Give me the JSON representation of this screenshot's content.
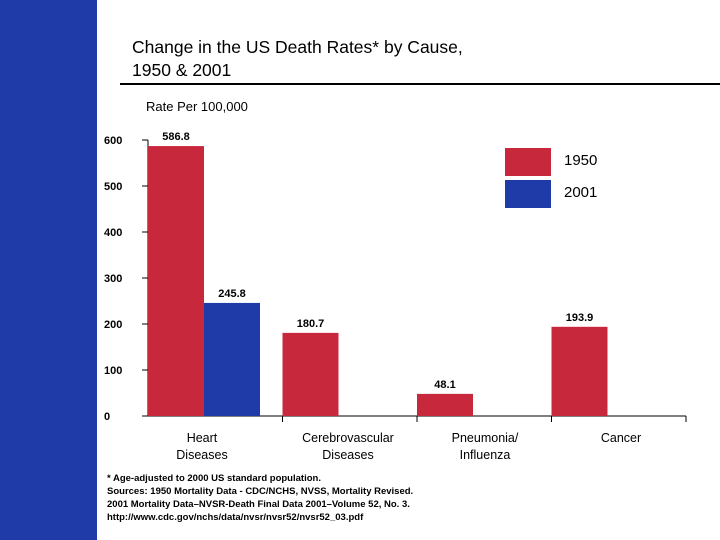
{
  "title": "Change in the US Death Rates* by Cause,\n1950 & 2001",
  "footnote": "* Age-adjusted to 2000 US standard population.\nSources: 1950 Mortality Data - CDC/NCHS, NVSS, Mortality Revised.\n2001 Mortality Data–NVSR-Death Final Data 2001–Volume 52, No. 3.\nhttp://www.cdc.gov/nchs/data/nvsr/nvsr52/nvsr52_03.pdf",
  "colors": {
    "sidebar": "#1f3ba8",
    "series_1950": "#c8283c",
    "series_2001": "#1f3ba8"
  },
  "chart_data": {
    "type": "bar",
    "title": "Change in the US Death Rates* by Cause, 1950 & 2001",
    "ylabel": "Rate Per 100,000",
    "ylim": [
      0,
      600
    ],
    "yticks": [
      0,
      100,
      200,
      300,
      400,
      500,
      600
    ],
    "categories": [
      "Heart\nDiseases",
      "Cerebrovascular\nDiseases",
      "Pneumonia/\nInfluenza",
      "Cancer"
    ],
    "series": [
      {
        "name": "1950",
        "color": "#c8283c",
        "values": [
          586.8,
          180.7,
          48.1,
          193.9
        ]
      },
      {
        "name": "2001",
        "color": "#1f3ba8",
        "values": [
          245.8,
          null,
          null,
          null
        ]
      }
    ],
    "data_labels": {
      "1950": [
        "586.8",
        "180.7",
        "48.1",
        "193.9"
      ],
      "2001": [
        "245.8",
        null,
        null,
        null
      ]
    },
    "legend_position": "top-right",
    "grid": false
  }
}
